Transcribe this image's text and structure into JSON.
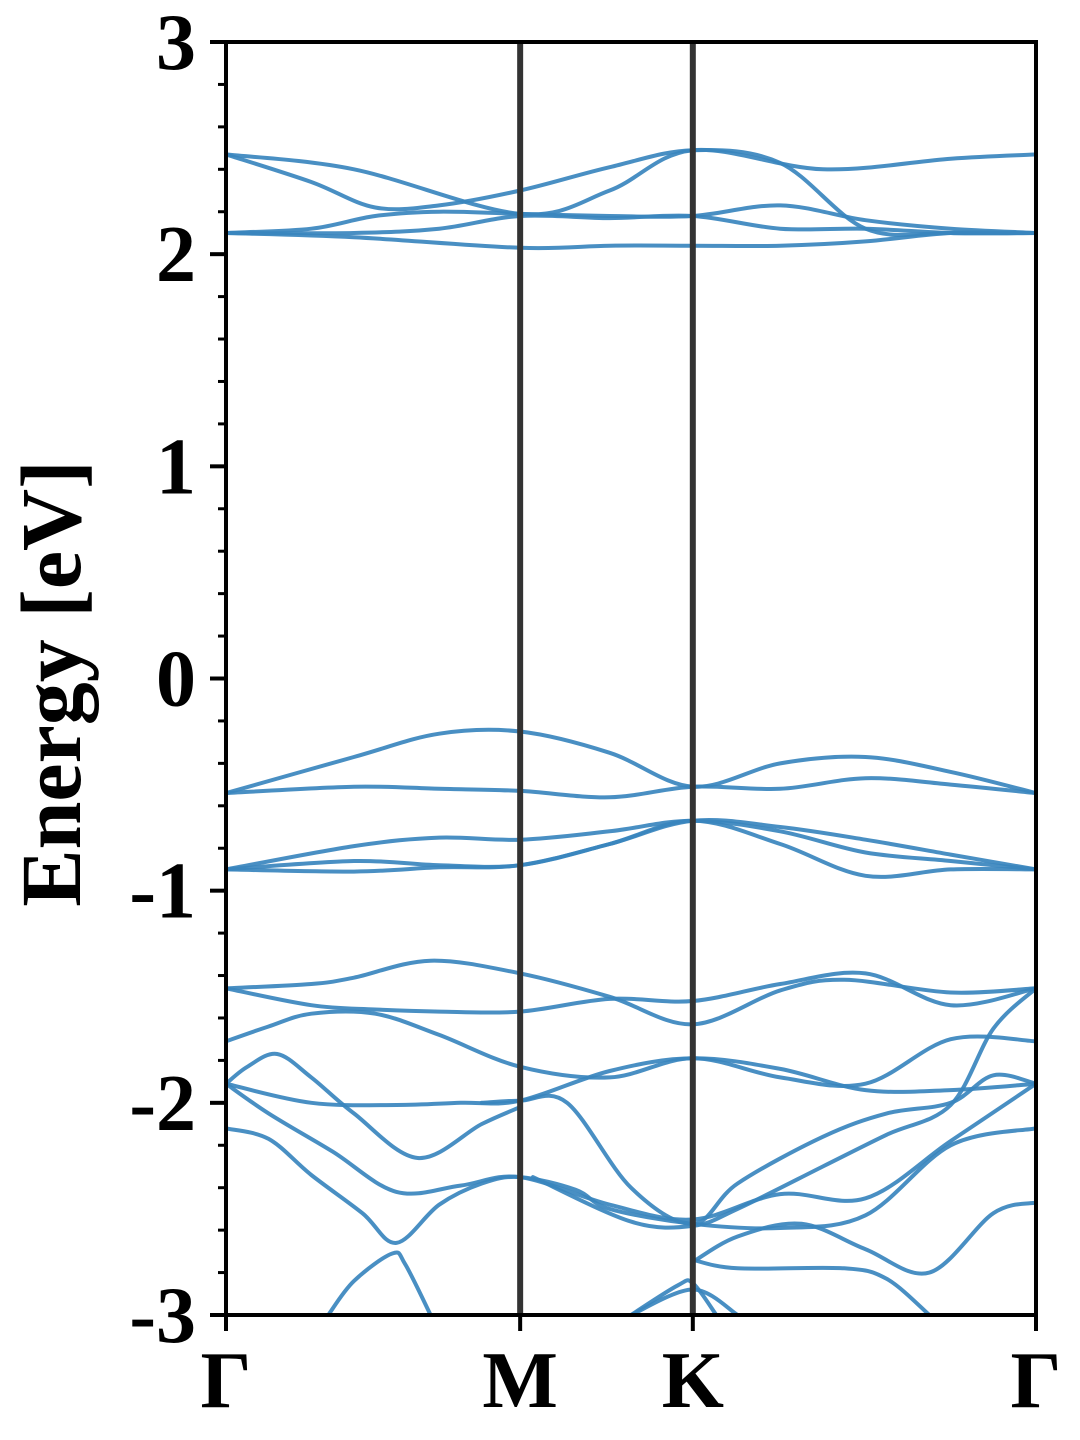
{
  "chart_data": {
    "type": "line",
    "title": "",
    "xlabel": "",
    "ylabel": "Energy [eV]",
    "ylim": [
      -3,
      3
    ],
    "xlim": [
      0,
      1.9
    ],
    "yticks": [
      3,
      2,
      1,
      0,
      -1,
      -2,
      -3
    ],
    "ytick_labels": [
      "3",
      "2",
      "1",
      "0",
      "-1",
      "-2",
      "-3"
    ],
    "ytick_minor_step": 0.2,
    "kpoints": [
      {
        "label": "Γ",
        "x": 0
      },
      {
        "label": "M",
        "x": 0.69
      },
      {
        "label": "K",
        "x": 1.095
      },
      {
        "label": "Γ",
        "x": 1.9
      }
    ],
    "grid": false,
    "line_color": "#3a86be",
    "kpath_line_color": "#333333",
    "series": [
      {
        "x": [
          0,
          0.3,
          0.69,
          0.9,
          1.095,
          1.4,
          1.7,
          1.9
        ],
        "values": [
          2.47,
          2.4,
          2.19,
          2.3,
          2.49,
          2.4,
          2.45,
          2.47
        ]
      },
      {
        "x": [
          0,
          0.2,
          0.35,
          0.5,
          0.69,
          0.9,
          1.095,
          1.3,
          1.5,
          1.7,
          1.9
        ],
        "values": [
          2.47,
          2.34,
          2.22,
          2.23,
          2.3,
          2.41,
          2.49,
          2.43,
          2.12,
          2.1,
          2.1
        ]
      },
      {
        "x": [
          0,
          0.2,
          0.35,
          0.5,
          0.69,
          0.9,
          1.095,
          1.3,
          1.5,
          1.7,
          1.9
        ],
        "values": [
          2.1,
          2.12,
          2.18,
          2.2,
          2.19,
          2.18,
          2.18,
          2.23,
          2.16,
          2.12,
          2.1
        ]
      },
      {
        "x": [
          0,
          0.3,
          0.5,
          0.69,
          0.9,
          1.095,
          1.3,
          1.5,
          1.7,
          1.9
        ],
        "values": [
          2.1,
          2.1,
          2.12,
          2.18,
          2.17,
          2.18,
          2.12,
          2.12,
          2.1,
          2.1
        ]
      },
      {
        "x": [
          0,
          0.3,
          0.69,
          0.9,
          1.095,
          1.3,
          1.5,
          1.7,
          1.9
        ],
        "values": [
          2.1,
          2.08,
          2.03,
          2.04,
          2.04,
          2.04,
          2.06,
          2.1,
          2.1
        ]
      },
      {
        "x": [
          0,
          0.3,
          0.5,
          0.69,
          0.9,
          1.095,
          1.3,
          1.5,
          1.7,
          1.9
        ],
        "values": [
          -0.54,
          -0.37,
          -0.26,
          -0.25,
          -0.35,
          -0.51,
          -0.4,
          -0.37,
          -0.44,
          -0.54
        ]
      },
      {
        "x": [
          0,
          0.3,
          0.5,
          0.69,
          0.9,
          1.095,
          1.3,
          1.5,
          1.7,
          1.9
        ],
        "values": [
          -0.54,
          -0.51,
          -0.52,
          -0.53,
          -0.56,
          -0.51,
          -0.52,
          -0.47,
          -0.5,
          -0.54
        ]
      },
      {
        "x": [
          0,
          0.3,
          0.5,
          0.69,
          0.9,
          1.095,
          1.3,
          1.5,
          1.7,
          1.9
        ],
        "values": [
          -0.9,
          -0.79,
          -0.75,
          -0.76,
          -0.72,
          -0.67,
          -0.72,
          -0.82,
          -0.86,
          -0.9
        ]
      },
      {
        "x": [
          0,
          0.3,
          0.5,
          0.69,
          0.9,
          1.095,
          1.3,
          1.5,
          1.7,
          1.9
        ],
        "values": [
          -0.9,
          -0.86,
          -0.88,
          -0.88,
          -0.78,
          -0.67,
          -0.78,
          -0.93,
          -0.9,
          -0.9
        ]
      },
      {
        "x": [
          0,
          0.3,
          0.5,
          0.69,
          0.9,
          1.095,
          1.3,
          1.5,
          1.7,
          1.9
        ],
        "values": [
          -0.9,
          -0.91,
          -0.89,
          -0.88,
          -0.78,
          -0.67,
          -0.7,
          -0.76,
          -0.83,
          -0.9
        ]
      },
      {
        "x": [
          0,
          0.2,
          0.3,
          0.48,
          0.69,
          0.9,
          1.095,
          1.3,
          1.45,
          1.7,
          1.9
        ],
        "values": [
          -1.46,
          -1.44,
          -1.41,
          -1.33,
          -1.39,
          -1.5,
          -1.63,
          -1.47,
          -1.42,
          -1.48,
          -1.46
        ]
      },
      {
        "x": [
          0,
          0.2,
          0.35,
          0.5,
          0.69,
          0.9,
          1.095,
          1.3,
          1.5,
          1.7,
          1.9
        ],
        "values": [
          -1.46,
          -1.54,
          -1.56,
          -1.57,
          -1.57,
          -1.51,
          -1.52,
          -1.44,
          -1.39,
          -1.54,
          -1.46
        ]
      },
      {
        "x": [
          0,
          0.1,
          0.2,
          0.35,
          0.5,
          0.69,
          0.9,
          1.095,
          1.3,
          1.5,
          1.7,
          1.9
        ],
        "values": [
          -1.71,
          -1.64,
          -1.58,
          -1.58,
          -1.68,
          -1.83,
          -1.88,
          -1.79,
          -1.88,
          -1.91,
          -1.7,
          -1.71
        ]
      },
      {
        "x": [
          0,
          0.05,
          0.12,
          0.2,
          0.3,
          0.45,
          0.6,
          0.69
        ],
        "values": [
          -1.91,
          -1.83,
          -1.77,
          -1.88,
          -2.05,
          -2.26,
          -2.1,
          -2.02
        ]
      },
      {
        "x": [
          0,
          0.2,
          0.4,
          0.55,
          0.69,
          0.9,
          1.095,
          1.3,
          1.5,
          1.7,
          1.9
        ],
        "values": [
          -1.91,
          -2.0,
          -2.01,
          -2.0,
          -1.99,
          -1.85,
          -1.79,
          -1.84,
          -1.94,
          -1.94,
          -1.91
        ]
      },
      {
        "x": [
          0,
          0.1,
          0.25,
          0.4,
          0.55,
          0.69,
          0.9,
          1.095,
          1.3,
          1.5,
          1.7,
          1.9
        ],
        "values": [
          -1.91,
          -2.05,
          -2.23,
          -2.42,
          -2.39,
          -2.35,
          -2.48,
          -2.55,
          -2.43,
          -2.45,
          -2.18,
          -1.91
        ]
      },
      {
        "x": [
          0,
          0.1,
          0.2,
          0.32,
          0.4,
          0.5,
          0.6,
          0.69,
          0.82,
          0.9,
          1.095,
          1.3,
          1.5,
          1.7,
          1.9
        ],
        "values": [
          -2.12,
          -2.17,
          -2.34,
          -2.52,
          -2.66,
          -2.48,
          -2.38,
          -2.35,
          -2.41,
          -2.5,
          -2.57,
          -2.59,
          -2.53,
          -2.2,
          -2.12
        ]
      },
      {
        "x": [
          0.6,
          0.69,
          0.8,
          0.95,
          1.095,
          1.2,
          1.4,
          1.55,
          1.7,
          1.8,
          1.9
        ],
        "values": [
          -2.0,
          -1.99,
          -2.0,
          -2.4,
          -2.57,
          -2.38,
          -2.16,
          -2.05,
          -2.0,
          -1.87,
          -1.91
        ]
      },
      {
        "x": [
          0.72,
          0.95,
          1.095,
          1.2,
          1.4,
          1.55,
          1.7,
          1.8,
          1.9
        ],
        "values": [
          -2.35,
          -2.56,
          -2.58,
          -2.5,
          -2.3,
          -2.15,
          -2.01,
          -1.65,
          -1.46
        ]
      },
      {
        "x": [
          1.095,
          1.2,
          1.35,
          1.5,
          1.65,
          1.8,
          1.9
        ],
        "values": [
          -2.75,
          -2.63,
          -2.57,
          -2.69,
          -2.8,
          -2.52,
          -2.47
        ]
      },
      {
        "x": [
          1.095,
          1.2,
          1.45,
          1.55,
          1.65
        ],
        "values": [
          -2.74,
          -2.78,
          -2.78,
          -2.83,
          -3.0
        ]
      },
      {
        "x": [
          0.24,
          0.3,
          0.39,
          0.42,
          0.48
        ],
        "values": [
          -3.0,
          -2.84,
          -2.71,
          -2.76,
          -3.0
        ]
      },
      {
        "x": [
          0.95,
          1.06,
          1.095,
          1.15
        ],
        "values": [
          -3.0,
          -2.86,
          -2.85,
          -3.0
        ]
      },
      {
        "x": [
          0.95,
          1.095,
          1.2
        ],
        "values": [
          -3.0,
          -2.88,
          -3.0
        ]
      }
    ]
  }
}
